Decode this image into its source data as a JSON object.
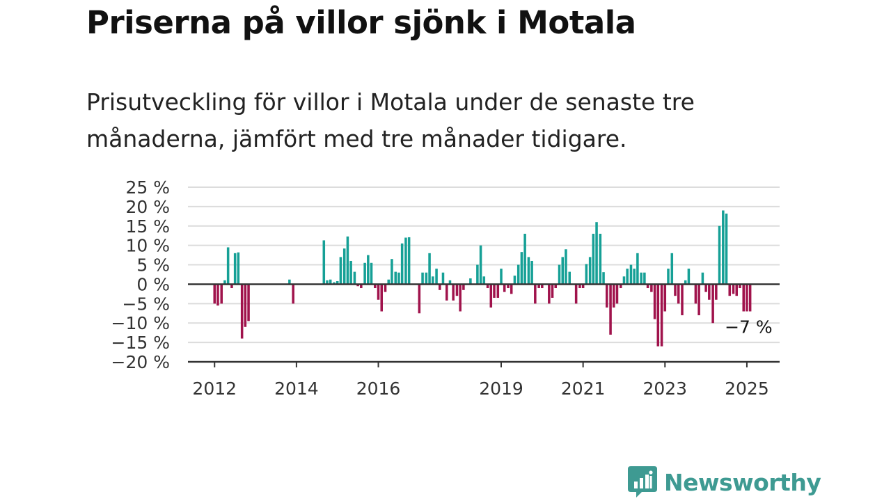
{
  "title": "Priserna på villor sjönk i Motala",
  "subtitle": "Prisutveckling för villor i Motala under de senaste tre månaderna, jämfört med tre månader tidigare.",
  "logo": {
    "text": "Newsworthy",
    "icon": "newsworthy-logo-icon",
    "color": "#3e9a92"
  },
  "colors": {
    "positive": "#16a096",
    "negative": "#a0134c",
    "grid": "#dcdcdc",
    "zero_line": "#333333",
    "axis": "#333333"
  },
  "chart_data": {
    "type": "bar",
    "title": "",
    "xlabel": "",
    "ylabel": "",
    "ylim": [
      -20,
      25
    ],
    "y_ticks": [
      25,
      20,
      15,
      10,
      5,
      0,
      -5,
      -10,
      -15,
      -20
    ],
    "y_tick_labels": [
      "25 %",
      "20 %",
      "15 %",
      "10 %",
      "5 %",
      "0 %",
      "−5 %",
      "−10 %",
      "−15 %",
      "−20 %"
    ],
    "x_tick_labels": [
      {
        "label": "2012",
        "x": 2012.0
      },
      {
        "label": "2014",
        "x": 2014.0
      },
      {
        "label": "2016",
        "x": 2016.0
      },
      {
        "label": "2019",
        "x": 2019.0
      },
      {
        "label": "2021",
        "x": 2021.0
      },
      {
        "label": "2023",
        "x": 2023.0
      },
      {
        "label": "2025",
        "x": 2025.0
      }
    ],
    "x_range": [
      2011.35,
      2025.8
    ],
    "grid": true,
    "annotation": {
      "text": "−7 %",
      "x": 2025.08,
      "y": -7
    },
    "series": [
      {
        "values": [
          [
            2012.0,
            -5
          ],
          [
            2012.08,
            -5.5
          ],
          [
            2012.17,
            -5
          ],
          [
            2012.25,
            1
          ],
          [
            2012.33,
            9.5
          ],
          [
            2012.42,
            -1
          ],
          [
            2012.5,
            8
          ],
          [
            2012.58,
            8.2
          ],
          [
            2012.67,
            -14
          ],
          [
            2012.75,
            -11
          ],
          [
            2012.83,
            -9.5
          ],
          [
            2013.83,
            1.2
          ],
          [
            2013.92,
            -5
          ],
          [
            2014.67,
            11.3
          ],
          [
            2014.75,
            1
          ],
          [
            2014.83,
            1.2
          ],
          [
            2014.92,
            0.5
          ],
          [
            2015.0,
            0.8
          ],
          [
            2015.08,
            7
          ],
          [
            2015.17,
            9.2
          ],
          [
            2015.25,
            12.3
          ],
          [
            2015.33,
            6
          ],
          [
            2015.42,
            3.2
          ],
          [
            2015.5,
            -0.5
          ],
          [
            2015.58,
            -1
          ],
          [
            2015.67,
            5.5
          ],
          [
            2015.75,
            7.5
          ],
          [
            2015.83,
            5.5
          ],
          [
            2015.92,
            -1
          ],
          [
            2016.0,
            -4
          ],
          [
            2016.08,
            -7
          ],
          [
            2016.17,
            -2
          ],
          [
            2016.25,
            1.2
          ],
          [
            2016.33,
            6.5
          ],
          [
            2016.42,
            3.2
          ],
          [
            2016.5,
            3
          ],
          [
            2016.58,
            10.5
          ],
          [
            2016.67,
            12
          ],
          [
            2016.75,
            12.1
          ],
          [
            2017.0,
            -7.5
          ],
          [
            2017.08,
            3
          ],
          [
            2017.17,
            3
          ],
          [
            2017.25,
            8
          ],
          [
            2017.33,
            2
          ],
          [
            2017.42,
            4
          ],
          [
            2017.5,
            -1.5
          ],
          [
            2017.58,
            3
          ],
          [
            2017.67,
            -4.2
          ],
          [
            2017.75,
            1
          ],
          [
            2017.83,
            -4.2
          ],
          [
            2017.92,
            -3
          ],
          [
            2018.0,
            -7
          ],
          [
            2018.08,
            -1.5
          ],
          [
            2018.25,
            1.5
          ],
          [
            2018.42,
            5
          ],
          [
            2018.5,
            10
          ],
          [
            2018.58,
            2
          ],
          [
            2018.67,
            -1
          ],
          [
            2018.75,
            -6
          ],
          [
            2018.83,
            -3.5
          ],
          [
            2018.92,
            -3.5
          ],
          [
            2019.0,
            4
          ],
          [
            2019.08,
            -2
          ],
          [
            2019.17,
            -1
          ],
          [
            2019.25,
            -2.5
          ],
          [
            2019.33,
            2.2
          ],
          [
            2019.42,
            5
          ],
          [
            2019.5,
            8.3
          ],
          [
            2019.58,
            13
          ],
          [
            2019.67,
            7
          ],
          [
            2019.75,
            6
          ],
          [
            2019.83,
            -5
          ],
          [
            2019.92,
            -1
          ],
          [
            2020.0,
            -1
          ],
          [
            2020.17,
            -5
          ],
          [
            2020.25,
            -3.5
          ],
          [
            2020.33,
            -1
          ],
          [
            2020.42,
            5
          ],
          [
            2020.5,
            7
          ],
          [
            2020.58,
            9
          ],
          [
            2020.67,
            3.2
          ],
          [
            2020.83,
            -5
          ],
          [
            2020.92,
            -1
          ],
          [
            2021.0,
            -1
          ],
          [
            2021.08,
            5.2
          ],
          [
            2021.17,
            7
          ],
          [
            2021.25,
            13
          ],
          [
            2021.33,
            16
          ],
          [
            2021.42,
            13
          ],
          [
            2021.5,
            3.1
          ],
          [
            2021.58,
            -6
          ],
          [
            2021.67,
            -13
          ],
          [
            2021.75,
            -6
          ],
          [
            2021.83,
            -5
          ],
          [
            2021.92,
            -1
          ],
          [
            2022.0,
            2
          ],
          [
            2022.08,
            4
          ],
          [
            2022.17,
            5
          ],
          [
            2022.25,
            4
          ],
          [
            2022.33,
            8
          ],
          [
            2022.42,
            3
          ],
          [
            2022.5,
            3
          ],
          [
            2022.58,
            -1
          ],
          [
            2022.67,
            -2
          ],
          [
            2022.75,
            -9
          ],
          [
            2022.83,
            -16
          ],
          [
            2022.92,
            -16
          ],
          [
            2023.0,
            -7
          ],
          [
            2023.08,
            4
          ],
          [
            2023.17,
            8
          ],
          [
            2023.25,
            -3
          ],
          [
            2023.33,
            -5
          ],
          [
            2023.42,
            -8
          ],
          [
            2023.5,
            1
          ],
          [
            2023.58,
            4
          ],
          [
            2023.75,
            -5
          ],
          [
            2023.83,
            -8
          ],
          [
            2023.92,
            3
          ],
          [
            2024.0,
            -2
          ],
          [
            2024.08,
            -4
          ],
          [
            2024.17,
            -10
          ],
          [
            2024.25,
            -4
          ],
          [
            2024.33,
            15
          ],
          [
            2024.42,
            19
          ],
          [
            2024.5,
            18.2
          ],
          [
            2024.58,
            -3
          ],
          [
            2024.67,
            -2.5
          ],
          [
            2024.75,
            -3
          ],
          [
            2024.83,
            -1
          ],
          [
            2024.92,
            -7
          ],
          [
            2025.0,
            -7
          ],
          [
            2025.08,
            -7
          ]
        ]
      }
    ]
  }
}
